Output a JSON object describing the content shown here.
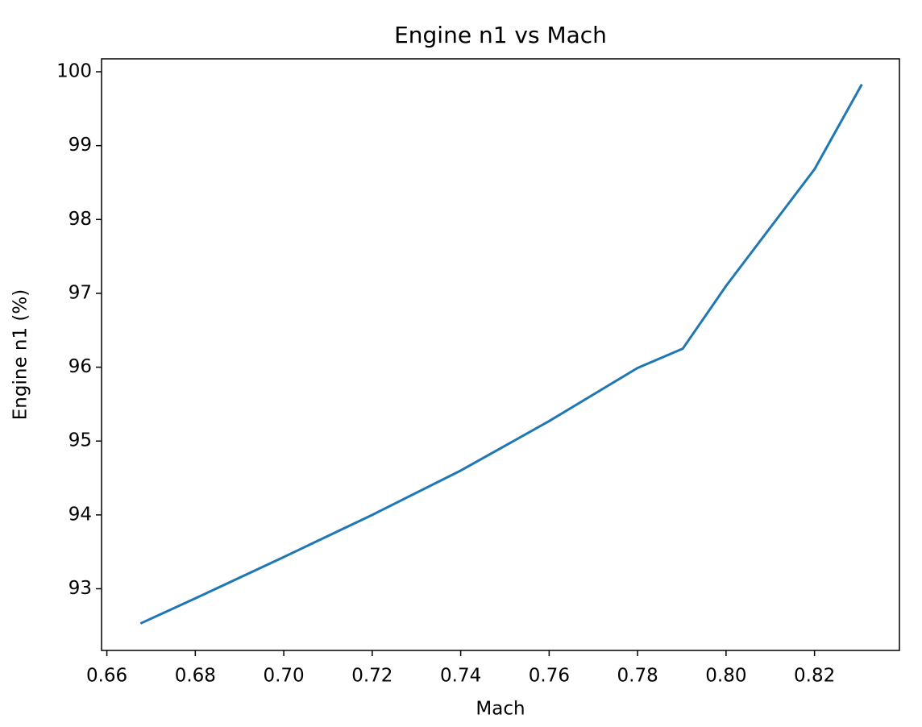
{
  "chart_data": {
    "type": "line",
    "title": "Engine n1 vs Mach",
    "x_label": "Mach",
    "y_label": "Engine n1 (%)",
    "x": [
      0.6676,
      0.68,
      0.7,
      0.72,
      0.74,
      0.76,
      0.78,
      0.7902,
      0.8,
      0.82,
      0.8307
    ],
    "series": [
      {
        "name": "Engine n1",
        "color": "#1f77b4",
        "values": [
          92.53,
          92.87,
          93.43,
          94.0,
          94.6,
          95.27,
          95.99,
          96.25,
          97.1,
          98.68,
          99.83
        ]
      }
    ],
    "xlim": [
      0.6588,
      0.8392
    ],
    "xticks": [
      {
        "value": 0.66,
        "label": "0.66"
      },
      {
        "value": 0.68,
        "label": "0.68"
      },
      {
        "value": 0.7,
        "label": "0.70"
      },
      {
        "value": 0.72,
        "label": "0.72"
      },
      {
        "value": 0.74,
        "label": "0.74"
      },
      {
        "value": 0.76,
        "label": "0.76"
      },
      {
        "value": 0.78,
        "label": "0.78"
      },
      {
        "value": 0.8,
        "label": "0.80"
      },
      {
        "value": 0.82,
        "label": "0.82"
      }
    ],
    "ylim": [
      92.165,
      100.175
    ],
    "yticks": [
      93,
      94,
      95,
      96,
      97,
      98,
      99,
      100
    ],
    "grid": false
  }
}
